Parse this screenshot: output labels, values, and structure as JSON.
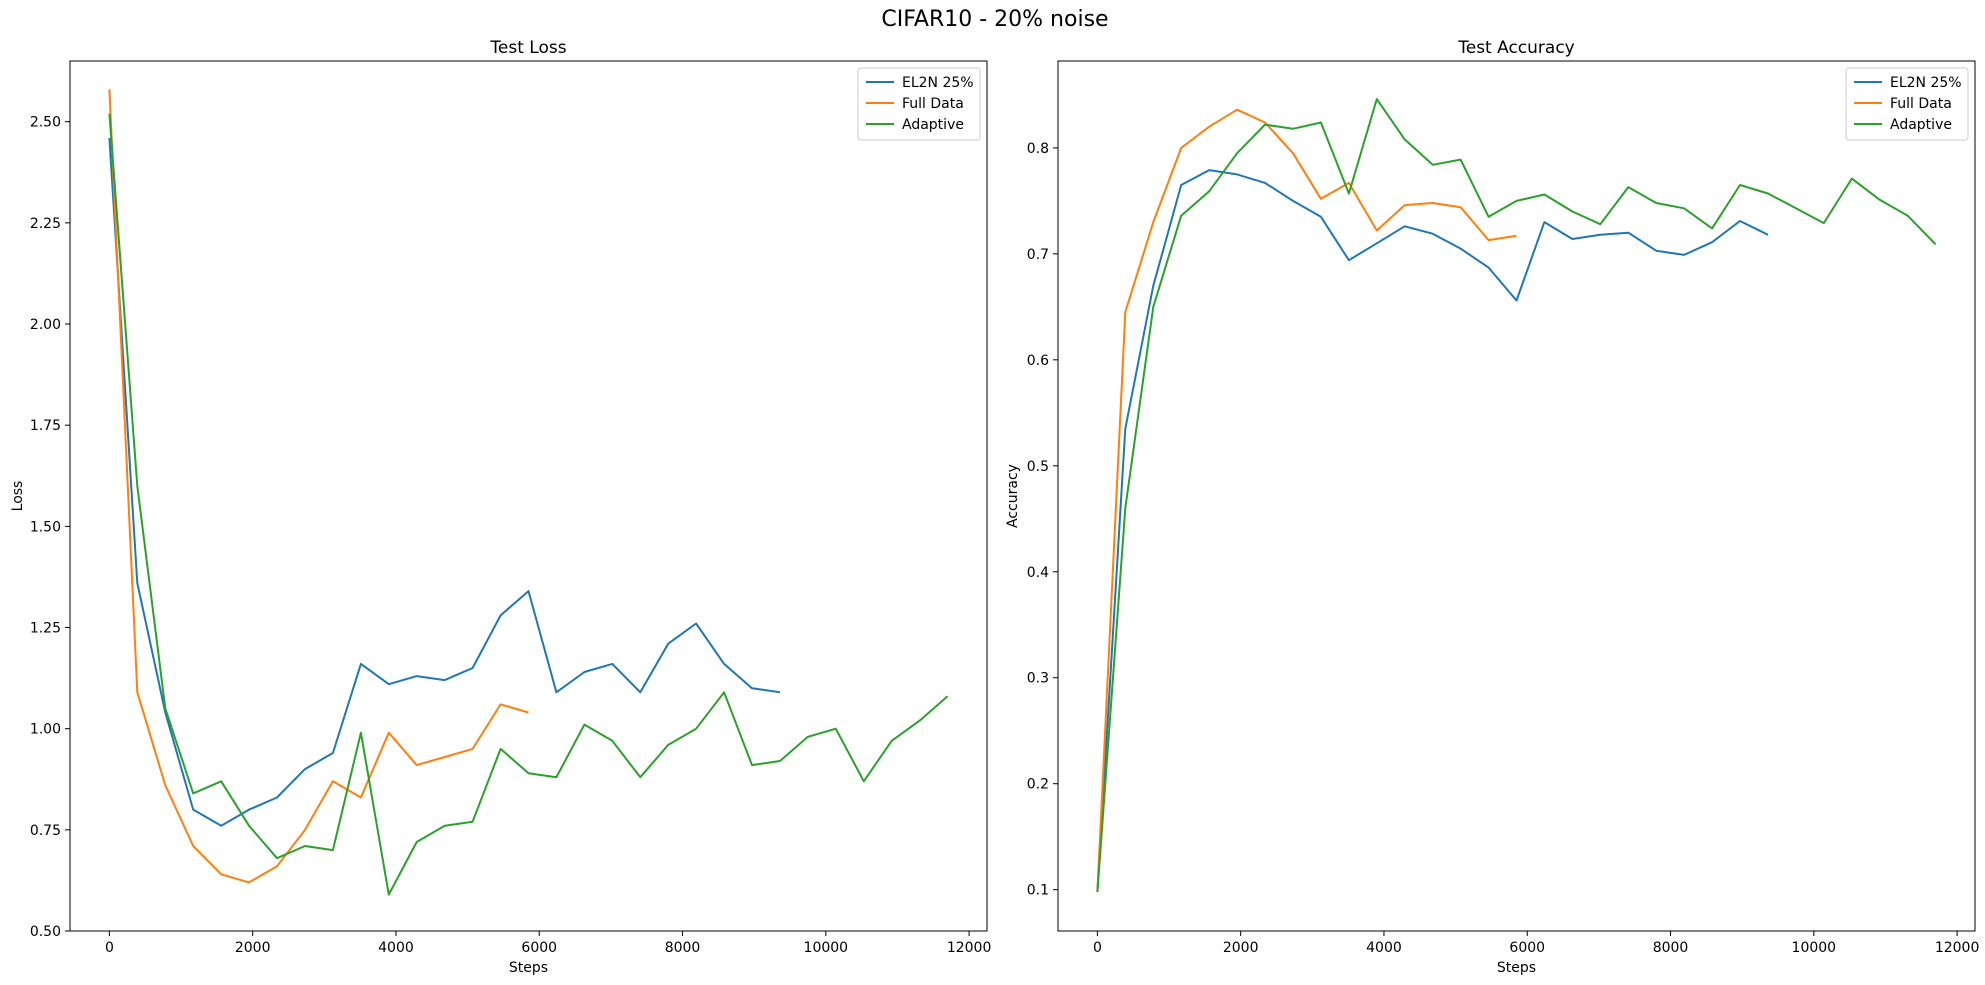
{
  "figure": {
    "title": "CIFAR10 - 20% noise"
  },
  "colors": {
    "el2n": "#1f77b4",
    "full": "#ff7f0e",
    "adaptive": "#2ca02c"
  },
  "chart_data": [
    {
      "type": "line",
      "title": "Test Loss",
      "xlabel": "Steps",
      "ylabel": "Loss",
      "xlim": [
        -550,
        12250
      ],
      "ylim": [
        0.5,
        2.65
      ],
      "xticks": [
        0,
        2000,
        4000,
        6000,
        8000,
        10000,
        12000
      ],
      "yticks": [
        0.5,
        0.75,
        1.0,
        1.25,
        1.5,
        1.75,
        2.0,
        2.25,
        2.5
      ],
      "ytick_labels": [
        "0.50",
        "0.75",
        "1.00",
        "1.25",
        "1.50",
        "1.75",
        "2.00",
        "2.25",
        "2.50"
      ],
      "grid": false,
      "legend": "top-right",
      "series": [
        {
          "name": "EL2N 25%",
          "color": "#1f77b4",
          "x": [
            0,
            390,
            780,
            1170,
            1560,
            1950,
            2340,
            2730,
            3120,
            3510,
            3900,
            4290,
            4680,
            5070,
            5460,
            5850,
            6240,
            6630,
            7020,
            7410,
            7800,
            8190,
            8580,
            8970,
            9360
          ],
          "y": [
            2.46,
            1.36,
            1.04,
            0.8,
            0.76,
            0.8,
            0.83,
            0.9,
            0.94,
            1.16,
            1.11,
            1.13,
            1.12,
            1.15,
            1.28,
            1.34,
            1.09,
            1.14,
            1.16,
            1.09,
            1.21,
            1.26,
            1.16,
            1.1,
            1.09
          ]
        },
        {
          "name": "Full Data",
          "color": "#ff7f0e",
          "x": [
            0,
            390,
            780,
            1170,
            1560,
            1950,
            2340,
            2730,
            3120,
            3510,
            3900,
            4290,
            4680,
            5070,
            5460,
            5850
          ],
          "y": [
            2.58,
            1.09,
            0.86,
            0.71,
            0.64,
            0.62,
            0.66,
            0.75,
            0.87,
            0.83,
            0.99,
            0.91,
            0.93,
            0.95,
            1.06,
            1.04
          ]
        },
        {
          "name": "Adaptive",
          "color": "#2ca02c",
          "x": [
            0,
            390,
            780,
            1170,
            1560,
            1950,
            2340,
            2730,
            3120,
            3510,
            3900,
            4290,
            4680,
            5070,
            5460,
            5850,
            6240,
            6630,
            7020,
            7410,
            7800,
            8190,
            8580,
            8970,
            9360,
            9750,
            10140,
            10530,
            10920,
            11310,
            11700
          ],
          "y": [
            2.52,
            1.6,
            1.05,
            0.84,
            0.87,
            0.76,
            0.68,
            0.71,
            0.7,
            0.99,
            0.59,
            0.72,
            0.76,
            0.77,
            0.95,
            0.89,
            0.88,
            1.01,
            0.97,
            0.88,
            0.96,
            1.0,
            1.09,
            0.91,
            0.92,
            0.98,
            1.0,
            0.87,
            0.97,
            1.02,
            1.08
          ]
        }
      ]
    },
    {
      "type": "line",
      "title": "Test Accuracy",
      "xlabel": "Steps",
      "ylabel": "Accuracy",
      "xlim": [
        -550,
        12250
      ],
      "ylim": [
        0.061,
        0.882
      ],
      "xticks": [
        0,
        2000,
        4000,
        6000,
        8000,
        10000,
        12000
      ],
      "yticks": [
        0.1,
        0.2,
        0.3,
        0.4,
        0.5,
        0.6,
        0.7,
        0.8
      ],
      "ytick_labels": [
        "0.1",
        "0.2",
        "0.3",
        "0.4",
        "0.5",
        "0.6",
        "0.7",
        "0.8"
      ],
      "grid": false,
      "legend": "top-right",
      "series": [
        {
          "name": "EL2N 25%",
          "color": "#1f77b4",
          "x": [
            0,
            390,
            780,
            1170,
            1560,
            1950,
            2340,
            2730,
            3120,
            3510,
            3900,
            4290,
            4680,
            5070,
            5460,
            5850,
            6240,
            6630,
            7020,
            7410,
            7800,
            8190,
            8580,
            8970,
            9360
          ],
          "y": [
            0.098,
            0.535,
            0.67,
            0.765,
            0.779,
            0.775,
            0.767,
            0.75,
            0.735,
            0.694,
            0.71,
            0.726,
            0.719,
            0.705,
            0.687,
            0.656,
            0.73,
            0.714,
            0.718,
            0.72,
            0.703,
            0.699,
            0.711,
            0.731,
            0.718
          ]
        },
        {
          "name": "Full Data",
          "color": "#ff7f0e",
          "x": [
            0,
            390,
            780,
            1170,
            1560,
            1950,
            2340,
            2730,
            3120,
            3510,
            3900,
            4290,
            4680,
            5070,
            5460,
            5850
          ],
          "y": [
            0.098,
            0.645,
            0.73,
            0.8,
            0.82,
            0.836,
            0.824,
            0.795,
            0.752,
            0.767,
            0.722,
            0.746,
            0.748,
            0.744,
            0.713,
            0.717
          ]
        },
        {
          "name": "Adaptive",
          "color": "#2ca02c",
          "x": [
            0,
            390,
            780,
            1170,
            1560,
            1950,
            2340,
            2730,
            3120,
            3510,
            3900,
            4290,
            4680,
            5070,
            5460,
            5850,
            6240,
            6630,
            7020,
            7410,
            7800,
            8190,
            8580,
            8970,
            9360,
            9750,
            10140,
            10530,
            10920,
            11310,
            11700
          ],
          "y": [
            0.098,
            0.46,
            0.65,
            0.736,
            0.759,
            0.795,
            0.822,
            0.818,
            0.824,
            0.757,
            0.846,
            0.808,
            0.784,
            0.789,
            0.735,
            0.75,
            0.756,
            0.74,
            0.728,
            0.763,
            0.748,
            0.743,
            0.724,
            0.765,
            0.757,
            0.743,
            0.729,
            0.771,
            0.751,
            0.736,
            0.709
          ]
        }
      ]
    }
  ]
}
